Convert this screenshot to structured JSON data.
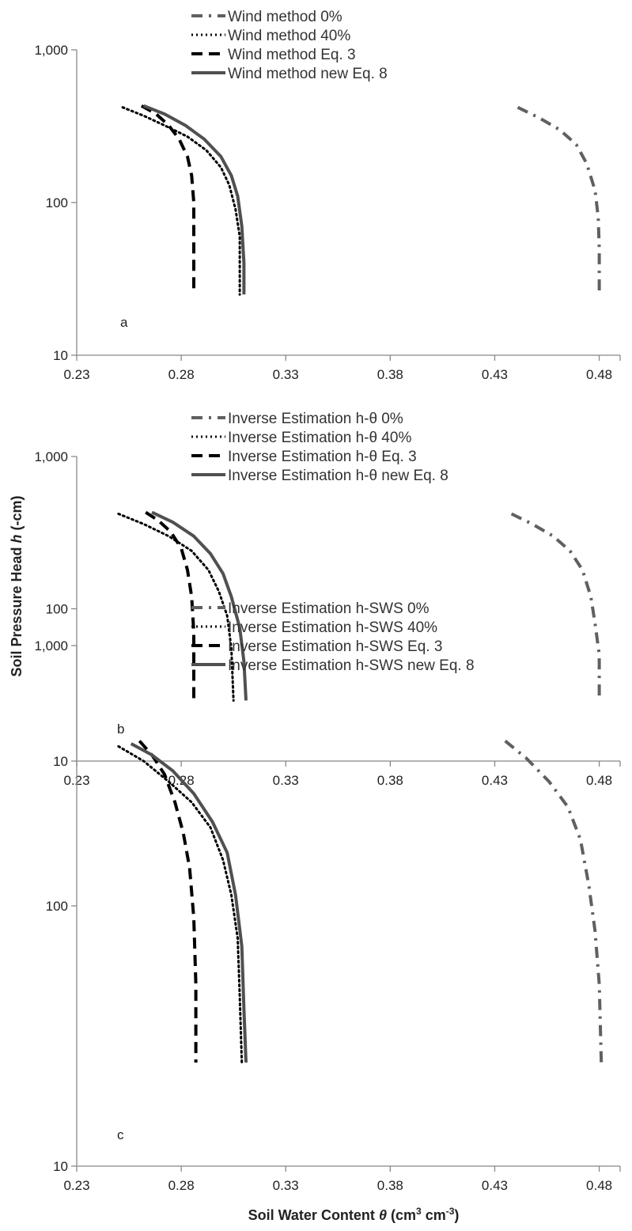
{
  "y_axis_label": "Soil Pressure Head",
  "y_axis_label_var": "h",
  "y_axis_label_unit": " (-cm)",
  "x_axis_label": "Soil Water Content",
  "x_axis_label_var": "θ",
  "x_axis_label_unit_a": " (cm",
  "x_axis_label_unit_b": "3",
  "x_axis_label_unit_c": " cm",
  "x_axis_label_unit_d": "-3",
  "x_axis_label_unit_e": ")",
  "colors": {
    "gray": "#606060",
    "black": "#000000",
    "axis": "#888888"
  },
  "chart_data": [
    {
      "type": "line",
      "panel_label": "a",
      "x_ticks": [
        "0.23",
        "0.28",
        "0.33",
        "0.38",
        "0.43",
        "0.48"
      ],
      "y_ticks": [
        "10",
        "100",
        "1,000"
      ],
      "xlim": [
        0.23,
        0.49
      ],
      "ylim": [
        10,
        1000
      ],
      "y_scale": "log",
      "legend_position": "top-center",
      "series": [
        {
          "name": "Wind  method 0%",
          "style": "dashdot",
          "color": "#606060",
          "points": [
            [
              0.441,
              420
            ],
            [
              0.451,
              360
            ],
            [
              0.461,
              300
            ],
            [
              0.469,
              240
            ],
            [
              0.474,
              180
            ],
            [
              0.478,
              120
            ],
            [
              0.4795,
              80
            ],
            [
              0.48,
              50
            ],
            [
              0.48,
              25
            ]
          ]
        },
        {
          "name": "Wind method 40%",
          "style": "dotted",
          "color": "#000000",
          "points": [
            [
              0.252,
              420
            ],
            [
              0.262,
              370
            ],
            [
              0.272,
              320
            ],
            [
              0.283,
              270
            ],
            [
              0.292,
              220
            ],
            [
              0.299,
              170
            ],
            [
              0.303,
              130
            ],
            [
              0.306,
              90
            ],
            [
              0.308,
              60
            ],
            [
              0.308,
              25
            ]
          ]
        },
        {
          "name": "Wind method Eq. 3",
          "style": "dashed",
          "color": "#000000",
          "points": [
            [
              0.261,
              430
            ],
            [
              0.268,
              380
            ],
            [
              0.274,
              320
            ],
            [
              0.279,
              260
            ],
            [
              0.283,
              200
            ],
            [
              0.285,
              150
            ],
            [
              0.286,
              100
            ],
            [
              0.286,
              50
            ],
            [
              0.286,
              25
            ]
          ]
        },
        {
          "name": "Wind  method new Eq. 8",
          "style": "solid",
          "color": "#505050",
          "points": [
            [
              0.262,
              430
            ],
            [
              0.272,
              380
            ],
            [
              0.282,
              320
            ],
            [
              0.291,
              260
            ],
            [
              0.299,
              200
            ],
            [
              0.304,
              150
            ],
            [
              0.307,
              110
            ],
            [
              0.309,
              70
            ],
            [
              0.31,
              40
            ],
            [
              0.31,
              25
            ]
          ]
        }
      ]
    },
    {
      "type": "line",
      "panel_label": "b",
      "x_ticks": [
        "0.23",
        "0.28",
        "0.33",
        "0.38",
        "0.43",
        "0.48"
      ],
      "y_ticks": [
        "10",
        "100",
        "1,000"
      ],
      "xlim": [
        0.23,
        0.49
      ],
      "ylim": [
        10,
        1000
      ],
      "y_scale": "log",
      "legend_position": "top-center",
      "series": [
        {
          "name": "Inverse Estimation h-θ 0%",
          "style": "dashdot",
          "color": "#606060",
          "points": [
            [
              0.438,
              420
            ],
            [
              0.448,
              360
            ],
            [
              0.458,
              300
            ],
            [
              0.466,
              240
            ],
            [
              0.472,
              180
            ],
            [
              0.476,
              120
            ],
            [
              0.478,
              80
            ],
            [
              0.48,
              50
            ],
            [
              0.48,
              25
            ]
          ]
        },
        {
          "name": "Inverse Estimation h-θ 40%",
          "style": "dotted",
          "color": "#000000",
          "points": [
            [
              0.25,
              420
            ],
            [
              0.262,
              360
            ],
            [
              0.274,
              300
            ],
            [
              0.285,
              240
            ],
            [
              0.293,
              180
            ],
            [
              0.298,
              130
            ],
            [
              0.302,
              90
            ],
            [
              0.304,
              55
            ],
            [
              0.305,
              25
            ]
          ]
        },
        {
          "name": "Inverse Estimation h-θ Eq. 3",
          "style": "dashed",
          "color": "#000000",
          "points": [
            [
              0.263,
              430
            ],
            [
              0.269,
              380
            ],
            [
              0.275,
              320
            ],
            [
              0.28,
              250
            ],
            [
              0.283,
              180
            ],
            [
              0.285,
              120
            ],
            [
              0.286,
              70
            ],
            [
              0.286,
              40
            ],
            [
              0.286,
              25
            ]
          ]
        },
        {
          "name": "Inverse Estimation h-θ new Eq. 8",
          "style": "solid",
          "color": "#505050",
          "points": [
            [
              0.266,
              430
            ],
            [
              0.276,
              370
            ],
            [
              0.286,
              300
            ],
            [
              0.294,
              230
            ],
            [
              0.3,
              170
            ],
            [
              0.304,
              120
            ],
            [
              0.308,
              75
            ],
            [
              0.31,
              45
            ],
            [
              0.311,
              25
            ]
          ]
        }
      ]
    },
    {
      "type": "line",
      "panel_label": "c",
      "x_ticks": [
        "0.23",
        "0.28",
        "0.33",
        "0.38",
        "0.43",
        "0.48"
      ],
      "y_ticks": [
        "10",
        "100",
        "1,000"
      ],
      "xlim": [
        0.23,
        0.49
      ],
      "ylim": [
        10,
        1000
      ],
      "y_scale": "log",
      "legend_position": "top-center",
      "series": [
        {
          "name": "Inverse Estimation h-SWS 0%",
          "style": "dashdot",
          "color": "#606060",
          "points": [
            [
              0.435,
              430
            ],
            [
              0.445,
              370
            ],
            [
              0.456,
              300
            ],
            [
              0.465,
              240
            ],
            [
              0.471,
              180
            ],
            [
              0.475,
              120
            ],
            [
              0.478,
              80
            ],
            [
              0.48,
              50
            ],
            [
              0.481,
              25
            ]
          ]
        },
        {
          "name": "Inverse Estimation h-SWS 40%",
          "style": "dotted",
          "color": "#000000",
          "points": [
            [
              0.25,
              410
            ],
            [
              0.262,
              360
            ],
            [
              0.274,
              300
            ],
            [
              0.285,
              250
            ],
            [
              0.294,
              200
            ],
            [
              0.3,
              150
            ],
            [
              0.304,
              110
            ],
            [
              0.307,
              75
            ],
            [
              0.308,
              45
            ],
            [
              0.309,
              25
            ]
          ]
        },
        {
          "name": "Inverse Estimation h-SWS Eq. 3",
          "style": "dashed",
          "color": "#000000",
          "points": [
            [
              0.26,
              430
            ],
            [
              0.266,
              380
            ],
            [
              0.272,
              320
            ],
            [
              0.277,
              250
            ],
            [
              0.281,
              190
            ],
            [
              0.284,
              140
            ],
            [
              0.286,
              90
            ],
            [
              0.287,
              50
            ],
            [
              0.287,
              25
            ]
          ]
        },
        {
          "name": "Inverse Estimation h-SWS new Eq. 8",
          "style": "solid",
          "color": "#505050",
          "points": [
            [
              0.256,
              420
            ],
            [
              0.266,
              380
            ],
            [
              0.276,
              330
            ],
            [
              0.286,
              270
            ],
            [
              0.295,
              210
            ],
            [
              0.302,
              160
            ],
            [
              0.306,
              110
            ],
            [
              0.309,
              70
            ],
            [
              0.31,
              40
            ],
            [
              0.311,
              25
            ]
          ]
        }
      ]
    }
  ]
}
